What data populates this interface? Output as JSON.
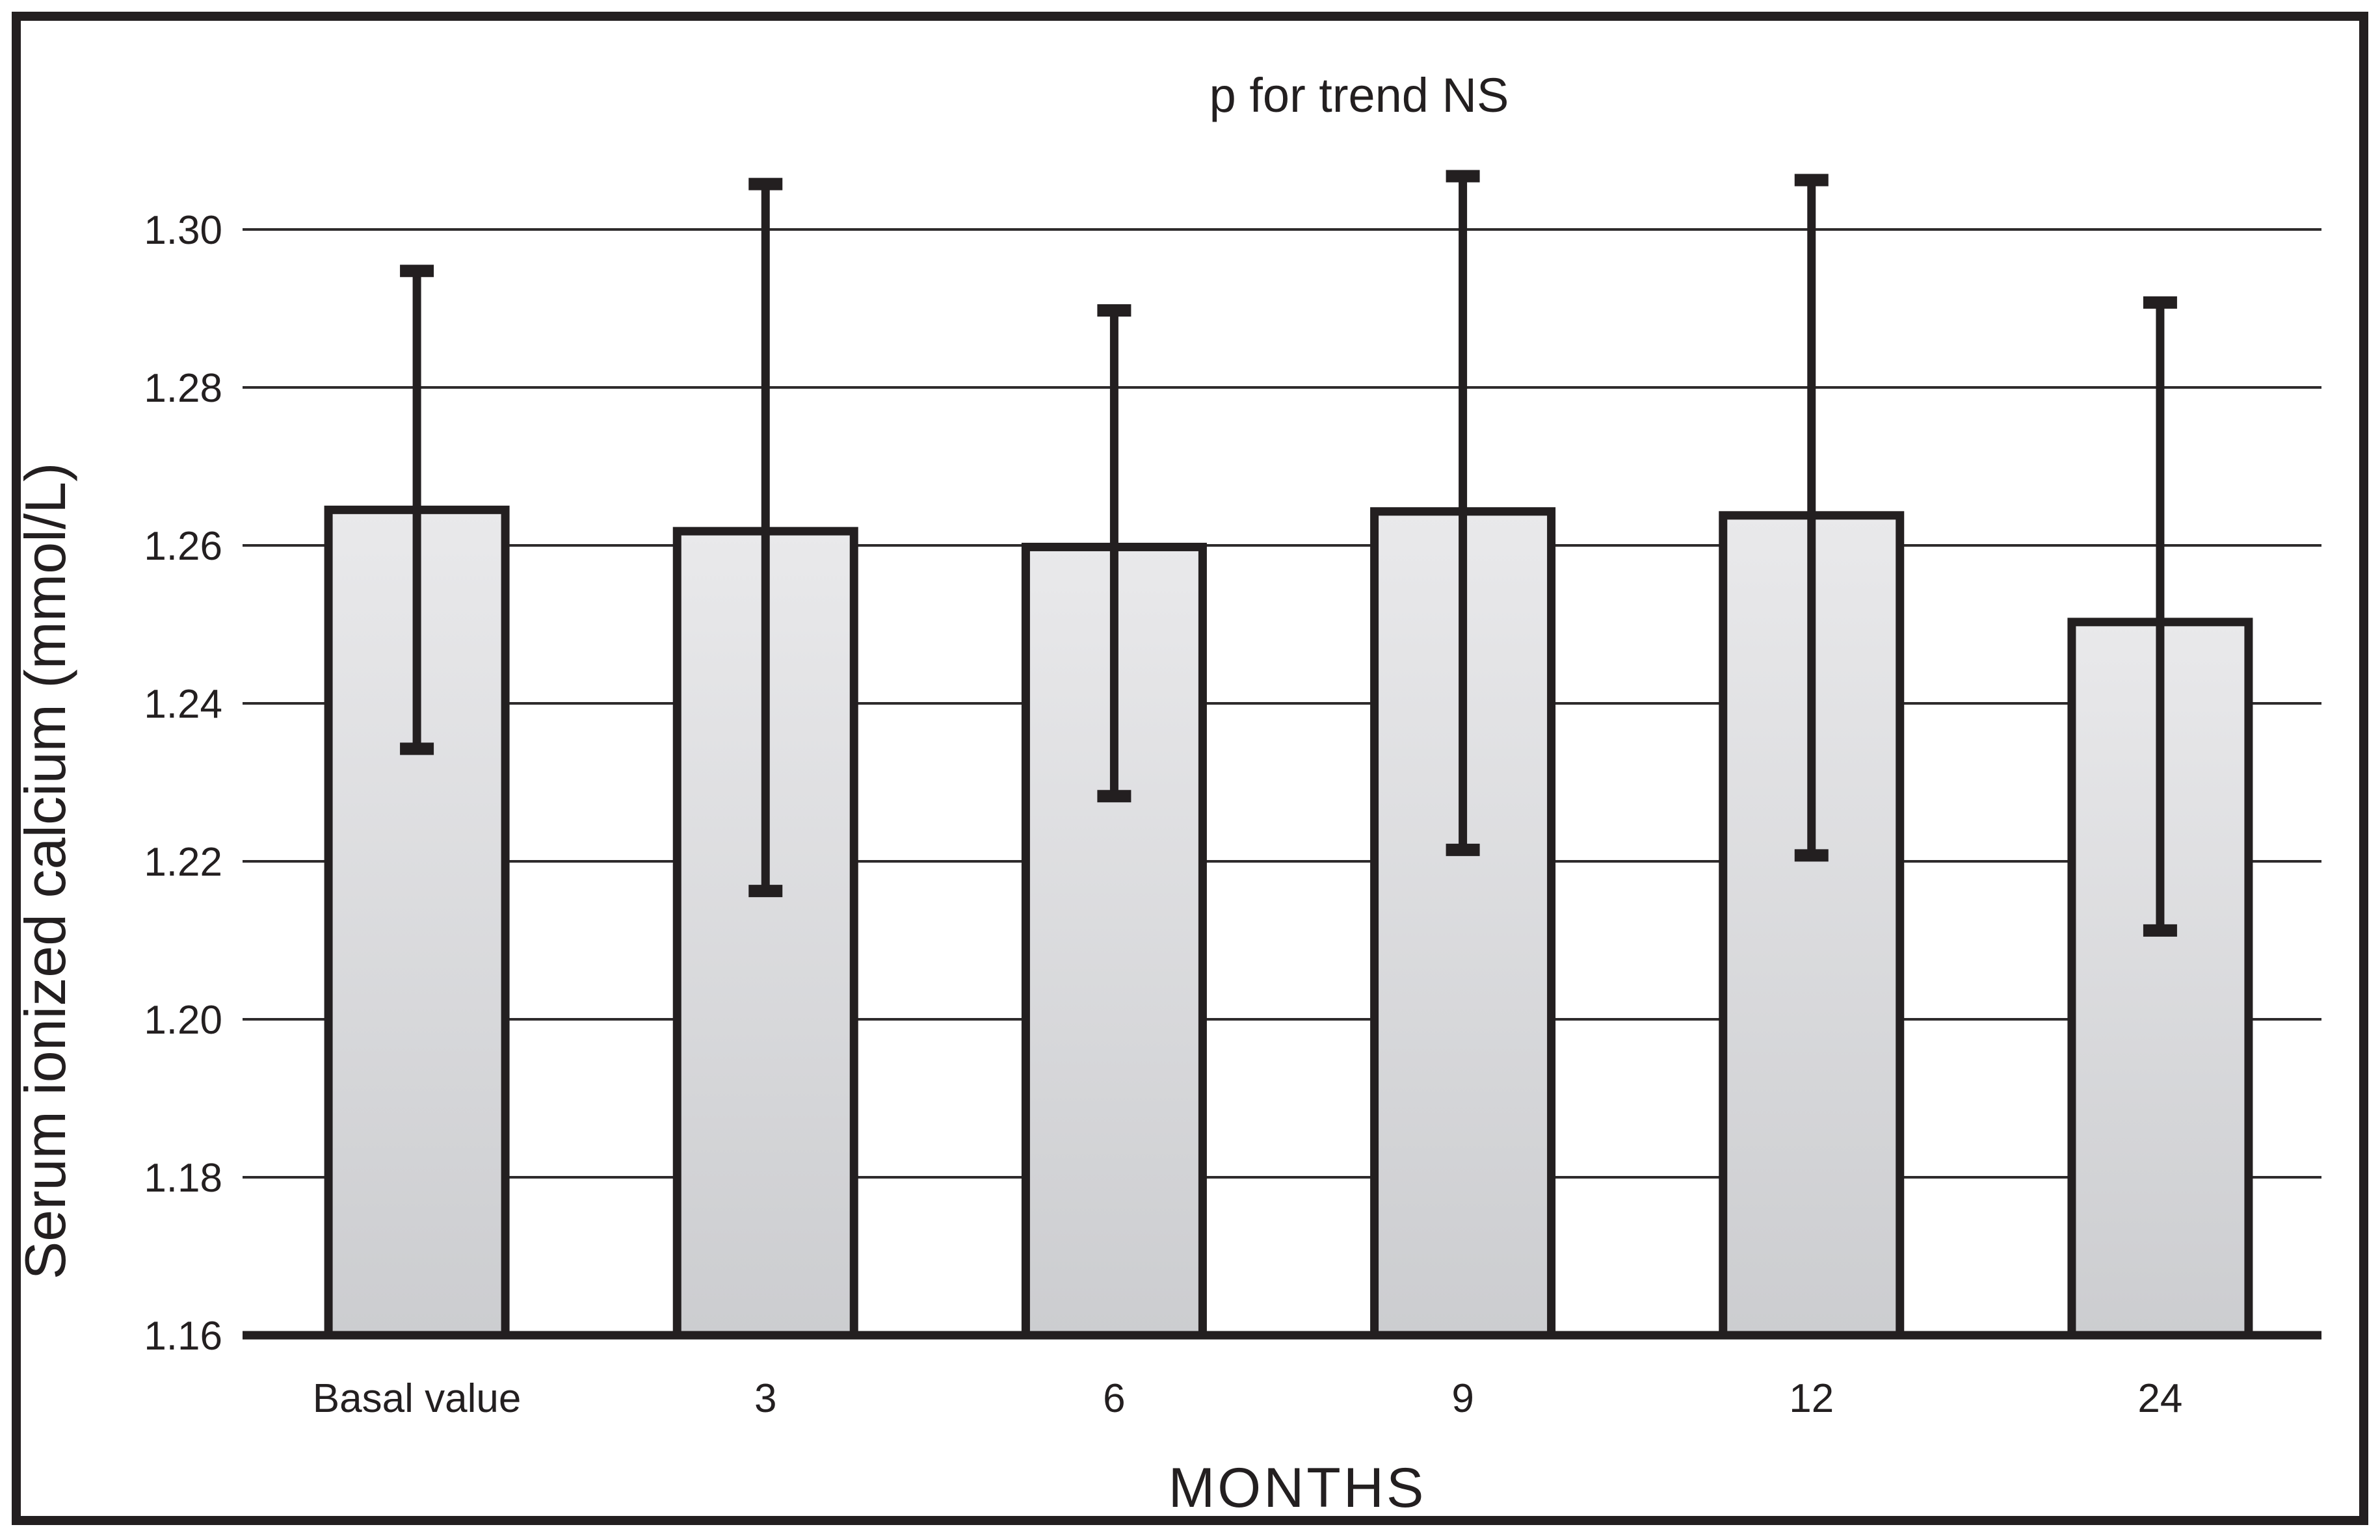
{
  "figure": {
    "background": "#ffffff",
    "ink_color": "#231f20",
    "gridline_color": "#2e2b2c",
    "bar_fill_top": "#e9e9eb",
    "bar_fill_bottom": "#cccdd0"
  },
  "chart_data": {
    "type": "bar",
    "title": "p for trend NS",
    "categories": [
      "Basal value",
      "3",
      "6",
      "9",
      "12",
      "24"
    ],
    "series": [
      {
        "name": "Serum ionized calcium",
        "values": [
          1.2645,
          1.2618,
          1.2598,
          1.2643,
          1.2638,
          1.2503
        ],
        "error_upper": [
          1.295,
          1.306,
          1.29,
          1.307,
          1.3065,
          1.291
        ],
        "error_lower": [
          1.234,
          1.216,
          1.228,
          1.2212,
          1.2205,
          1.211
        ]
      }
    ],
    "xlabel": "MONTHS",
    "ylabel": "Serum ionized calcium (mmol/L)",
    "ylim": [
      1.16,
      1.3
    ],
    "ytick_step": 0.02,
    "yticks": [
      1.3,
      1.28,
      1.26,
      1.24,
      1.22,
      1.2,
      1.18,
      1.16
    ],
    "ytick_labels": [
      "1.30",
      "1.28",
      "1.26",
      "1.24",
      "1.22",
      "1.20",
      "1.18",
      "1.16"
    ],
    "grid": true,
    "legend": false,
    "error_bars": true,
    "baseline_value": 1.16
  }
}
